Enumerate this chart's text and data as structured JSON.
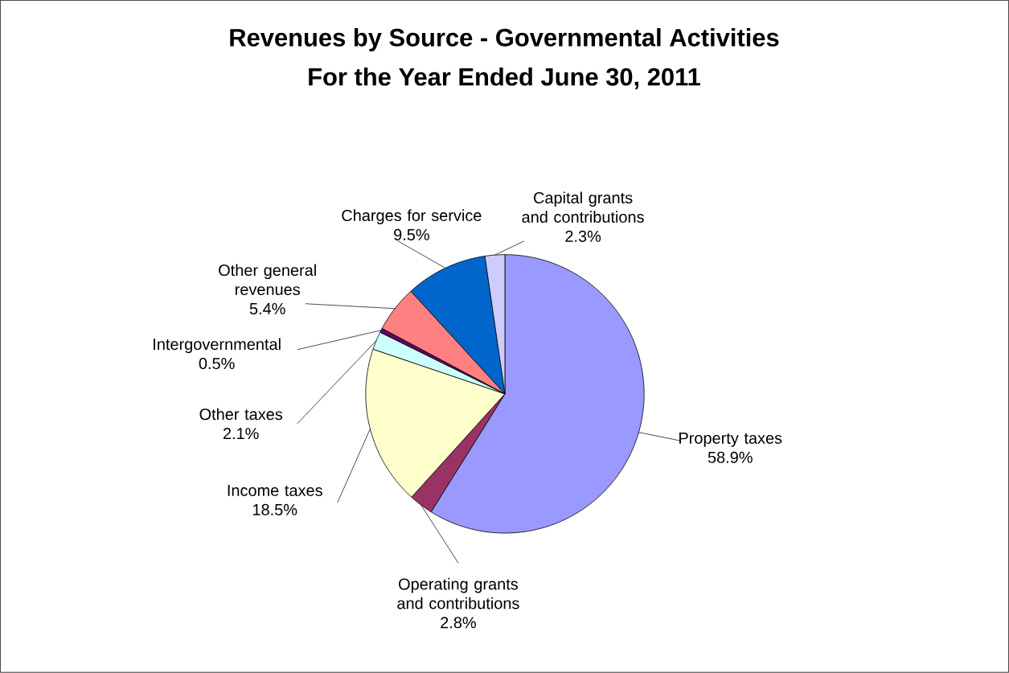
{
  "chart_data": {
    "type": "pie",
    "title": "Revenues by Source - Governmental Activities",
    "subtitle": "For the Year Ended June 30, 2011",
    "categories": [
      "Property taxes",
      "Operating grants and contributions",
      "Income taxes",
      "Other taxes",
      "Intergovernmental",
      "Other general revenues",
      "Charges for service",
      "Capital grants and contributions"
    ],
    "values": [
      58.9,
      2.8,
      18.5,
      2.1,
      0.5,
      5.4,
      9.5,
      2.3
    ],
    "value_labels": [
      "58.9%",
      "2.8%",
      "18.5%",
      "2.1%",
      "0.5%",
      "5.4%",
      "9.5%",
      "2.3%"
    ],
    "colors": [
      "#9999ff",
      "#993366",
      "#ffffcc",
      "#ccffff",
      "#660066",
      "#ff8080",
      "#0066cc",
      "#ccccff"
    ]
  }
}
